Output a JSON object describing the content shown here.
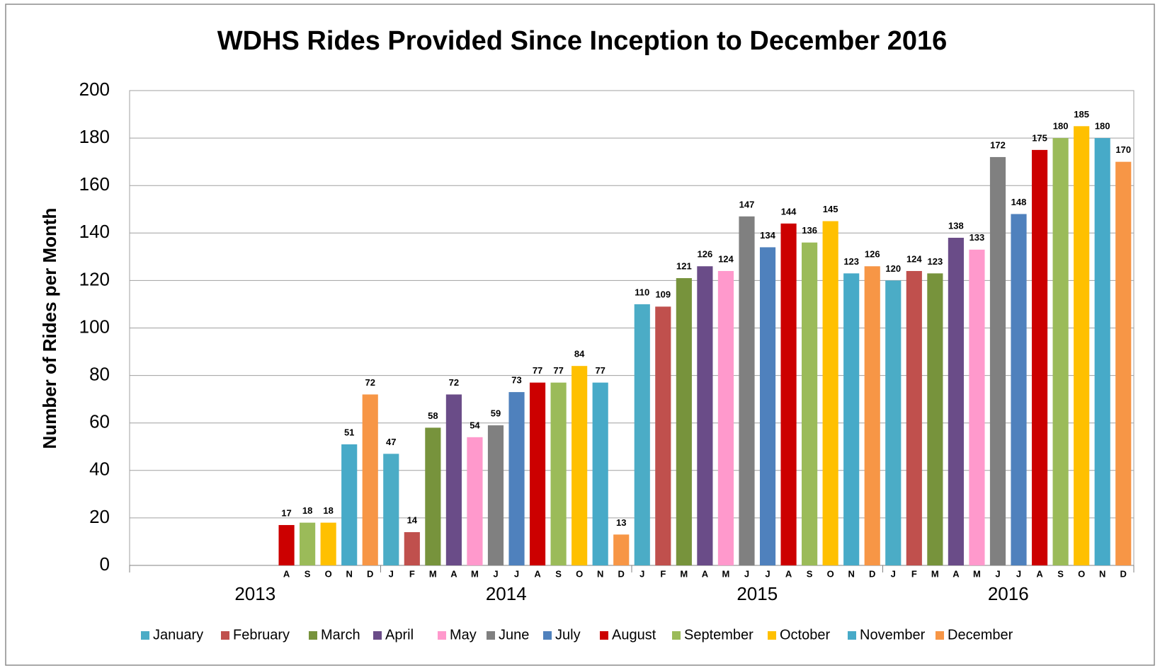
{
  "chart_data": {
    "type": "bar",
    "title": "WDHS Rides Provided Since Inception to December 2016",
    "y_label": "Number of Rides per Month",
    "categories": [
      "2013",
      "2014",
      "2015",
      "2016"
    ],
    "series": [
      {
        "name": "January",
        "short": "J",
        "color": "#4bacc6",
        "values": [
          null,
          47,
          110,
          120
        ]
      },
      {
        "name": "February",
        "short": "F",
        "color": "#c0504d",
        "values": [
          null,
          14,
          109,
          124
        ]
      },
      {
        "name": "March",
        "short": "M",
        "color": "#77933c",
        "values": [
          null,
          58,
          121,
          123
        ]
      },
      {
        "name": "April",
        "short": "A",
        "color": "#6a4c88",
        "values": [
          null,
          72,
          126,
          138
        ]
      },
      {
        "name": "May",
        "short": "M",
        "color": "#ff99cc",
        "values": [
          null,
          54,
          124,
          133
        ]
      },
      {
        "name": "June",
        "short": "J",
        "color": "#808080",
        "values": [
          null,
          59,
          147,
          172
        ]
      },
      {
        "name": "July",
        "short": "J",
        "color": "#4f81bd",
        "values": [
          null,
          73,
          134,
          148
        ]
      },
      {
        "name": "August",
        "short": "A",
        "color": "#cc0000",
        "values": [
          17,
          77,
          144,
          175
        ]
      },
      {
        "name": "September",
        "short": "S",
        "color": "#9bbb59",
        "values": [
          18,
          77,
          136,
          180
        ]
      },
      {
        "name": "October",
        "short": "O",
        "color": "#ffc000",
        "values": [
          18,
          84,
          145,
          185
        ]
      },
      {
        "name": "November",
        "short": "N",
        "color": "#47aac8",
        "values": [
          51,
          77,
          123,
          180
        ]
      },
      {
        "name": "December",
        "short": "D",
        "color": "#f79646",
        "values": [
          72,
          13,
          126,
          170
        ]
      }
    ],
    "ylim": [
      0,
      200
    ],
    "yticks": [
      0,
      20,
      40,
      60,
      80,
      100,
      120,
      140,
      160,
      180,
      200
    ],
    "grid": true,
    "legend": "bottom"
  }
}
